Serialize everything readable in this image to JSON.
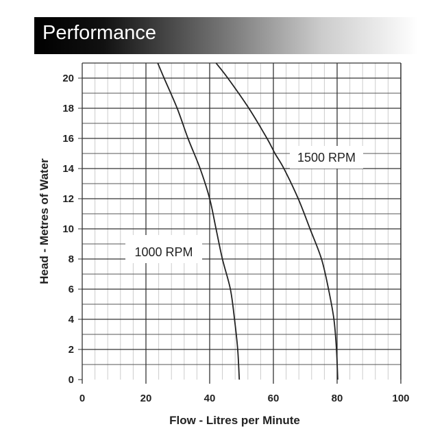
{
  "header": {
    "title": "Performance"
  },
  "chart_data": {
    "type": "line",
    "title": "Performance",
    "xlabel": "Flow - Litres per Minute",
    "ylabel": "Head - Metres of Water",
    "xlim": [
      0,
      100
    ],
    "ylim": [
      0,
      21
    ],
    "xticks": [
      0,
      20,
      40,
      60,
      80,
      100
    ],
    "yticks": [
      0,
      2,
      4,
      6,
      8,
      10,
      12,
      14,
      16,
      18,
      20
    ],
    "grid": true,
    "series": [
      {
        "name": "1000 RPM",
        "points": [
          [
            23.7,
            21
          ],
          [
            25.7,
            20
          ],
          [
            29.8,
            18
          ],
          [
            33.2,
            16
          ],
          [
            37,
            14
          ],
          [
            40,
            12
          ],
          [
            42,
            10
          ],
          [
            44,
            8
          ],
          [
            46.5,
            6
          ],
          [
            47.8,
            4
          ],
          [
            48.8,
            2
          ],
          [
            49.3,
            0
          ]
        ]
      },
      {
        "name": "1500 RPM",
        "points": [
          [
            42,
            21
          ],
          [
            45.7,
            20
          ],
          [
            52.3,
            18
          ],
          [
            58,
            16
          ],
          [
            60.5,
            15
          ],
          [
            63.3,
            14
          ],
          [
            67.8,
            12
          ],
          [
            71.5,
            10
          ],
          [
            75.1,
            8
          ],
          [
            77.3,
            6
          ],
          [
            79,
            4
          ],
          [
            79.8,
            2
          ],
          [
            80.2,
            0
          ]
        ]
      }
    ],
    "colors": {
      "line": "#222222",
      "grid_major": "#333333",
      "grid_minor": "#cccccc"
    }
  }
}
